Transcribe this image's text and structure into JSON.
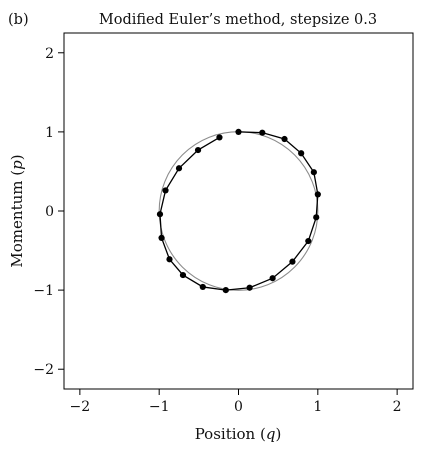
{
  "panel_label": "(b)",
  "chart_data": {
    "type": "line",
    "title": "Modified Euler’s method, stepsize 0.3",
    "xlabel_text": "Position",
    "xlabel_symbol": "q",
    "ylabel_text": "Momentum",
    "ylabel_symbol": "p",
    "xlim": [
      -2.2,
      2.2
    ],
    "ylim": [
      -2.25,
      2.25
    ],
    "xticks": [
      -2,
      -1,
      0,
      1,
      2
    ],
    "xtick_labels": [
      "−2",
      "−1",
      "0",
      "1",
      "2"
    ],
    "yticks": [
      -2,
      -1,
      0,
      1,
      2
    ],
    "ytick_labels": [
      "−2",
      "−1",
      "0",
      "1",
      "2"
    ],
    "grid": false,
    "reference_circle": {
      "center": [
        0,
        0
      ],
      "radius": 1,
      "color": "#8c8c8c"
    },
    "series": [
      {
        "color": "#000000",
        "x": [
          0.0,
          0.3,
          0.58,
          0.79,
          0.95,
          1.0,
          0.98,
          0.88,
          0.68,
          0.43,
          0.14,
          -0.16,
          -0.45,
          -0.7,
          -0.87,
          -0.97,
          -0.99,
          -0.92,
          -0.75,
          -0.51,
          -0.24
        ],
        "y": [
          1.0,
          0.99,
          0.91,
          0.73,
          0.49,
          0.21,
          -0.08,
          -0.38,
          -0.64,
          -0.85,
          -0.97,
          -1.0,
          -0.96,
          -0.81,
          -0.61,
          -0.34,
          -0.04,
          0.26,
          0.54,
          0.77,
          0.93
        ]
      }
    ]
  }
}
